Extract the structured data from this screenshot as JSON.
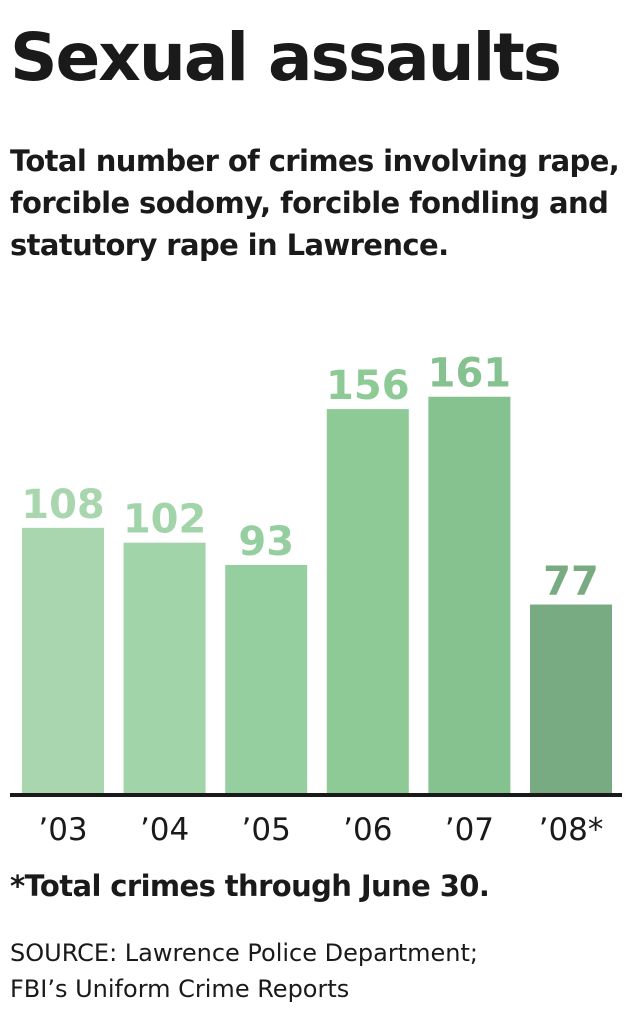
{
  "chart_data": {
    "type": "bar",
    "title": "Sexual assaults",
    "subtitle": "Total number of crimes involving rape, forcible sodomy, forcible fondling and statutory rape in Lawrence.",
    "categories": [
      "’03",
      "’04",
      "’05",
      "’06",
      "’07",
      "’08*"
    ],
    "values": [
      108,
      102,
      93,
      156,
      161,
      77
    ],
    "ylim": [
      0,
      190
    ],
    "grid": false,
    "bar_colors": [
      "#a9d6af",
      "#a2d4aa",
      "#96cf9f",
      "#8dca96",
      "#86c28f",
      "#79ab82"
    ],
    "label_colors": [
      "#a9d6af",
      "#a2d4aa",
      "#96cf9f",
      "#8dca96",
      "#86c28f",
      "#79ab82"
    ],
    "axis_color": "#1a1a1a"
  },
  "footnote": "*Total crimes through June 30.",
  "source_line1": "SOURCE: Lawrence Police Department;",
  "source_line2": "FBI’s Uniform Crime Reports"
}
